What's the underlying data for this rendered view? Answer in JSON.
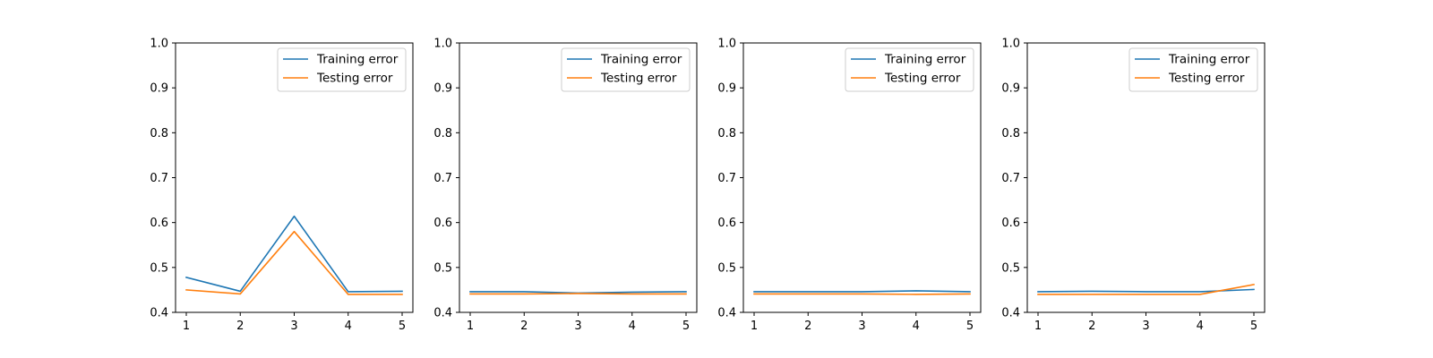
{
  "chart_data": [
    {
      "type": "line",
      "x": [
        1,
        2,
        3,
        4,
        5
      ],
      "ylim": [
        0.4,
        1.0
      ],
      "yticks": [
        "0.4",
        "0.5",
        "0.6",
        "0.7",
        "0.8",
        "0.9",
        "1.0"
      ],
      "xticks": [
        "1",
        "2",
        "3",
        "4",
        "5"
      ],
      "legend_position": "upper right",
      "grid": false,
      "series": [
        {
          "name": "Training error",
          "color": "#1f77b4",
          "values": [
            0.478,
            0.447,
            0.614,
            0.446,
            0.447
          ]
        },
        {
          "name": "Testing error",
          "color": "#ff7f0e",
          "values": [
            0.45,
            0.441,
            0.58,
            0.44,
            0.44
          ]
        }
      ]
    },
    {
      "type": "line",
      "x": [
        1,
        2,
        3,
        4,
        5
      ],
      "ylim": [
        0.4,
        1.0
      ],
      "yticks": [
        "0.4",
        "0.5",
        "0.6",
        "0.7",
        "0.8",
        "0.9",
        "1.0"
      ],
      "xticks": [
        "1",
        "2",
        "3",
        "4",
        "5"
      ],
      "legend_position": "upper right",
      "grid": false,
      "series": [
        {
          "name": "Training error",
          "color": "#1f77b4",
          "values": [
            0.446,
            0.446,
            0.443,
            0.445,
            0.446
          ]
        },
        {
          "name": "Testing error",
          "color": "#ff7f0e",
          "values": [
            0.441,
            0.441,
            0.442,
            0.441,
            0.441
          ]
        }
      ]
    },
    {
      "type": "line",
      "x": [
        1,
        2,
        3,
        4,
        5
      ],
      "ylim": [
        0.4,
        1.0
      ],
      "yticks": [
        "0.4",
        "0.5",
        "0.6",
        "0.7",
        "0.8",
        "0.9",
        "1.0"
      ],
      "xticks": [
        "1",
        "2",
        "3",
        "4",
        "5"
      ],
      "legend_position": "upper right",
      "grid": false,
      "series": [
        {
          "name": "Training error",
          "color": "#1f77b4",
          "values": [
            0.446,
            0.446,
            0.446,
            0.448,
            0.446
          ]
        },
        {
          "name": "Testing error",
          "color": "#ff7f0e",
          "values": [
            0.441,
            0.441,
            0.441,
            0.44,
            0.441
          ]
        }
      ]
    },
    {
      "type": "line",
      "x": [
        1,
        2,
        3,
        4,
        5
      ],
      "ylim": [
        0.4,
        1.0
      ],
      "yticks": [
        "0.4",
        "0.5",
        "0.6",
        "0.7",
        "0.8",
        "0.9",
        "1.0"
      ],
      "xticks": [
        "1",
        "2",
        "3",
        "4",
        "5"
      ],
      "legend_position": "upper right",
      "grid": false,
      "series": [
        {
          "name": "Training error",
          "color": "#1f77b4",
          "values": [
            0.446,
            0.447,
            0.446,
            0.446,
            0.451
          ]
        },
        {
          "name": "Testing error",
          "color": "#ff7f0e",
          "values": [
            0.44,
            0.44,
            0.44,
            0.44,
            0.462
          ]
        }
      ]
    }
  ]
}
